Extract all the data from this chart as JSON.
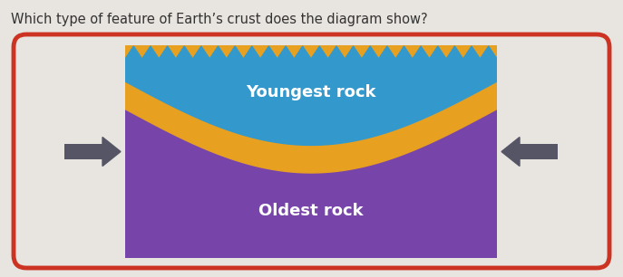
{
  "title": "Which type of feature of Earth’s crust does the diagram show?",
  "title_fontsize": 10.5,
  "title_color": "#333333",
  "bg_color": "#e8e4df",
  "border_color": "#cc3322",
  "border_lw": 3.5,
  "blue_color": "#3399cc",
  "gold_color": "#e8a020",
  "purple_color": "#7744aa",
  "arrow_color": "#555566",
  "youngest_label": "Youngest rock",
  "oldest_label": "Oldest rock",
  "label_color": "#ffffff",
  "label_fontsize": 13,
  "ix": 138,
  "iy": 50,
  "iw": 410,
  "ih": 235
}
